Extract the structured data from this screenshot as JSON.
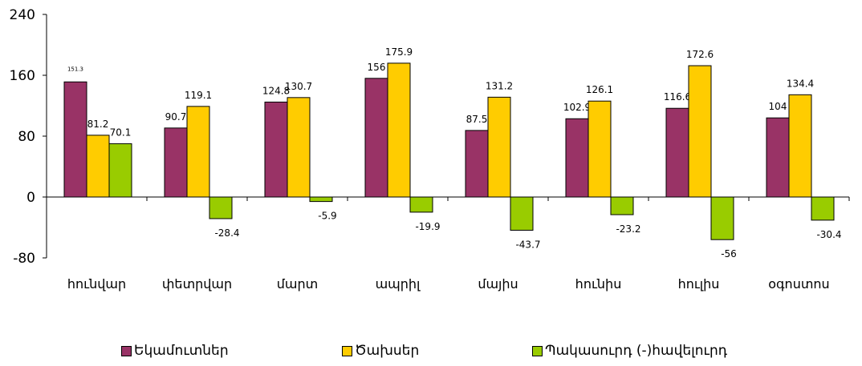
{
  "chart_data": {
    "type": "bar",
    "categories": [
      "հունվար",
      "փետրվար",
      "մարտ",
      "ապրիլ",
      "մայիս",
      "հունիս",
      "հուլիս",
      "օգոստոս"
    ],
    "series": [
      {
        "name": "Եկամուտներ",
        "color": "#993366",
        "values": [
          151.3,
          90.7,
          124.8,
          156,
          87.5,
          102.9,
          116.6,
          104
        ]
      },
      {
        "name": "Ծախսեր",
        "color": "#FFCC00",
        "values": [
          81.2,
          119.1,
          130.7,
          175.9,
          131.2,
          126.1,
          172.6,
          134.4
        ]
      },
      {
        "name": "Պակասուրդ (-)հավելուրդ",
        "color": "#99CC00",
        "values": [
          70.1,
          -28.4,
          -5.9,
          -19.9,
          -43.7,
          -23.2,
          -56,
          -30.4
        ]
      }
    ],
    "data_labels": [
      [
        "151.3",
        "90.7",
        "124.8",
        "156",
        "87.5",
        "102.9",
        "116.6",
        "104"
      ],
      [
        "81.2",
        "119.1",
        "130.7",
        "175.9",
        "131.2",
        "126.1",
        "172.6",
        "134.4"
      ],
      [
        "70.1",
        "-28.4",
        "-5.9",
        "-19.9",
        "-43.7",
        "-23.2",
        "-56",
        "-30.4"
      ]
    ],
    "y_ticks": [
      "240",
      "160",
      "80",
      "0",
      "-80"
    ],
    "ylim": [
      -80,
      240
    ],
    "grid": false,
    "legend_position": "bottom"
  }
}
